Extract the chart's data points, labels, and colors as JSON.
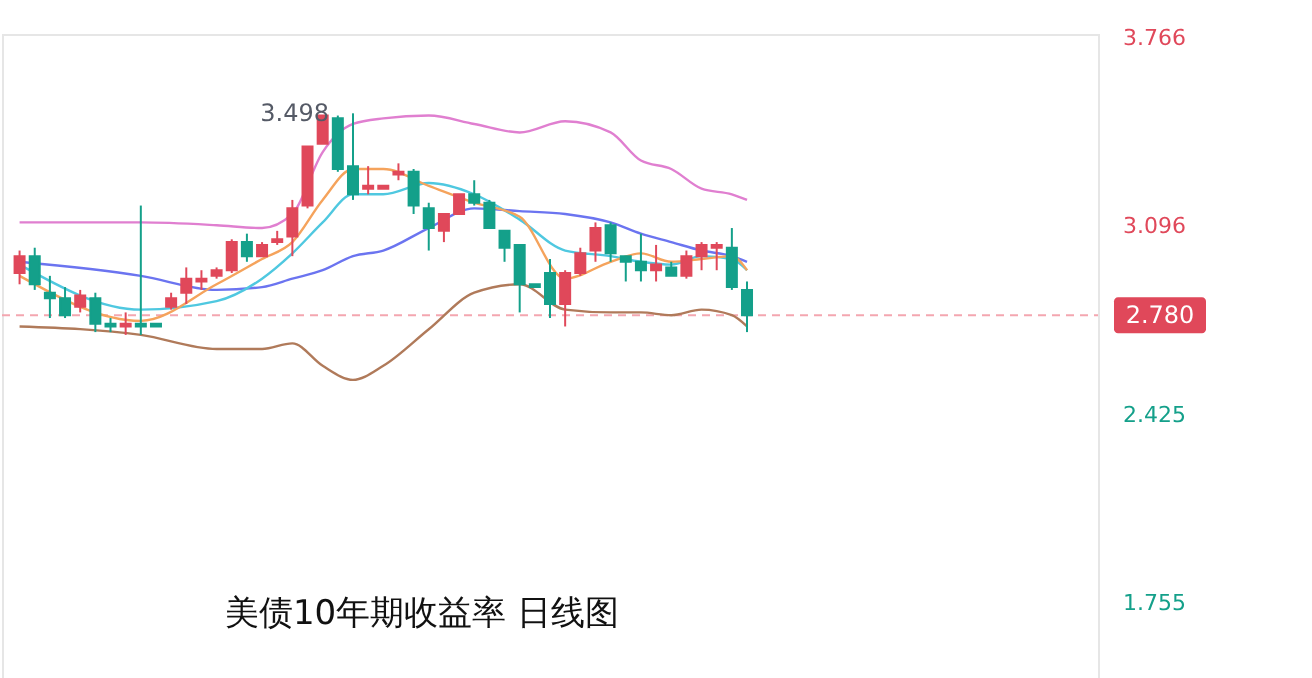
{
  "chart_data": {
    "type": "candlestick",
    "title": "美债10年期收益率 日线图",
    "categories": [
      null,
      null,
      null,
      null,
      null,
      null,
      null,
      null,
      null,
      null,
      null,
      null,
      null,
      null,
      null,
      null,
      null,
      null,
      null,
      null,
      null,
      null,
      null,
      null,
      null,
      null,
      null,
      null,
      null,
      null,
      null,
      null,
      null,
      null,
      null,
      null,
      null,
      null,
      null,
      null,
      null,
      null,
      null,
      null,
      null,
      null,
      null,
      null,
      null,
      null,
      null,
      null,
      null,
      null,
      null,
      null,
      null,
      null,
      null,
      null,
      null,
      null,
      null,
      null,
      null,
      null,
      null,
      null,
      null,
      null,
      null
    ],
    "ohlc": [
      [
        2.93,
        3.01,
        2.89,
        2.99
      ],
      [
        2.99,
        3.02,
        2.87,
        2.89
      ],
      [
        2.86,
        2.92,
        2.77,
        2.84
      ],
      [
        2.84,
        2.88,
        2.77,
        2.78
      ],
      [
        2.81,
        2.87,
        2.79,
        2.85
      ],
      [
        2.84,
        2.86,
        2.72,
        2.75
      ],
      [
        2.75,
        2.77,
        2.72,
        2.74
      ],
      [
        2.74,
        2.79,
        2.71,
        2.75
      ],
      [
        2.75,
        3.17,
        2.71,
        2.74
      ],
      [
        2.75,
        2.75,
        2.74,
        2.74
      ],
      [
        2.81,
        2.86,
        2.8,
        2.84
      ],
      [
        2.86,
        2.95,
        2.82,
        2.91
      ],
      [
        2.9,
        2.94,
        2.87,
        2.91
      ],
      [
        2.92,
        2.95,
        2.91,
        2.94
      ],
      [
        2.94,
        3.05,
        2.93,
        3.04
      ],
      [
        3.04,
        3.07,
        2.97,
        2.99
      ],
      [
        2.99,
        3.04,
        2.99,
        3.03
      ],
      [
        3.04,
        3.08,
        3.03,
        3.05
      ],
      [
        3.06,
        3.19,
        2.99,
        3.16
      ],
      [
        3.17,
        3.38,
        3.16,
        3.38
      ],
      [
        3.39,
        3.49,
        3.39,
        3.49
      ],
      [
        3.48,
        3.49,
        3.29,
        3.3
      ],
      [
        3.31,
        3.498,
        3.19,
        3.21
      ],
      [
        3.23,
        3.31,
        3.21,
        3.24
      ],
      [
        3.23,
        3.24,
        3.23,
        3.24
      ],
      [
        3.28,
        3.32,
        3.26,
        3.29
      ],
      [
        3.29,
        3.3,
        3.14,
        3.17
      ],
      [
        3.16,
        3.18,
        3.01,
        3.09
      ],
      [
        3.08,
        3.14,
        3.04,
        3.14
      ],
      [
        3.14,
        3.21,
        3.14,
        3.21
      ],
      [
        3.21,
        3.26,
        3.17,
        3.18
      ],
      [
        3.18,
        3.19,
        3.09,
        3.09
      ],
      [
        3.08,
        3.08,
        2.97,
        3.02
      ],
      [
        3.03,
        3.03,
        2.79,
        2.89
      ],
      [
        2.89,
        2.89,
        2.88,
        2.88
      ],
      [
        2.93,
        2.98,
        2.77,
        2.82
      ],
      [
        2.82,
        2.94,
        2.74,
        2.93
      ],
      [
        2.93,
        3.02,
        2.92,
        3.0
      ],
      [
        3.01,
        3.11,
        2.97,
        3.09
      ],
      [
        3.1,
        3.11,
        2.97,
        3.0
      ],
      [
        2.99,
        2.99,
        2.9,
        2.97
      ],
      [
        2.97,
        3.07,
        2.9,
        2.94
      ],
      [
        2.94,
        3.03,
        2.9,
        2.96
      ],
      [
        2.95,
        2.97,
        2.92,
        2.92
      ],
      [
        2.92,
        3.01,
        2.91,
        2.99
      ],
      [
        2.99,
        3.04,
        2.94,
        3.03
      ],
      [
        3.02,
        3.04,
        2.94,
        3.03
      ],
      [
        3.02,
        3.09,
        2.87,
        2.88
      ],
      [
        2.87,
        2.9,
        2.72,
        2.78
      ],
      null,
      null,
      null,
      null,
      null,
      null,
      null,
      null,
      null,
      null,
      null,
      null,
      null,
      null,
      null,
      null,
      null,
      null,
      null,
      null,
      null,
      null
    ],
    "colors": [
      "#e0485a",
      "#14a08a",
      "#14a08a",
      "#14a08a",
      "#e0485a",
      "#14a08a",
      "#14a08a",
      "#e0485a",
      "#14a08a",
      "#14a08a",
      "#e0485a",
      "#e0485a",
      "#e0485a",
      "#e0485a",
      "#e0485a",
      "#14a08a",
      "#e0485a",
      "#e0485a",
      "#e0485a",
      "#e0485a",
      "#e0485a",
      "#14a08a",
      "#14a08a",
      "#e0485a",
      "#e0485a",
      "#e0485a",
      "#14a08a",
      "#14a08a",
      "#e0485a",
      "#e0485a",
      "#14a08a",
      "#14a08a",
      "#14a08a",
      "#14a08a",
      "#14a08a",
      "#14a08a",
      "#e0485a",
      "#e0485a",
      "#e0485a",
      "#14a08a",
      "#14a08a",
      "#14a08a",
      "#e0485a",
      "#14a08a",
      "#e0485a",
      "#e0485a",
      "#e0485a",
      "#14a08a",
      "#14a08a",
      null,
      null,
      null,
      null,
      null,
      null,
      null,
      null,
      null,
      null,
      null,
      null,
      null,
      null,
      null,
      null,
      null,
      null,
      null,
      null,
      null,
      null
    ],
    "series": [
      {
        "type": "line",
        "color": "#e07fd0",
        "values": [
          3.11,
          null,
          null,
          null,
          null,
          null,
          null,
          null,
          3.11,
          null,
          null,
          null,
          null,
          3.1,
          null,
          null,
          3.09,
          null,
          3.14,
          null,
          3.36,
          null,
          3.46,
          null,
          3.48,
          null,
          null,
          3.49,
          null,
          null,
          3.46,
          null,
          null,
          3.43,
          null,
          null,
          3.47,
          null,
          null,
          3.43,
          null,
          3.33,
          null,
          3.3,
          null,
          3.23,
          null,
          3.21,
          3.19,
          null,
          null,
          null,
          null,
          null,
          null,
          null,
          null,
          null,
          null,
          null,
          null,
          null,
          null,
          null,
          null,
          null,
          null,
          null,
          null,
          null,
          null
        ]
      },
      {
        "type": "line",
        "color": "#b07a5a",
        "values": [
          2.74,
          null,
          null,
          null,
          null,
          null,
          null,
          null,
          2.71,
          null,
          null,
          null,
          null,
          2.66,
          null,
          null,
          2.66,
          null,
          2.68,
          null,
          2.6,
          null,
          2.55,
          null,
          2.6,
          null,
          null,
          2.73,
          null,
          null,
          2.86,
          null,
          null,
          2.89,
          null,
          null,
          2.8,
          null,
          null,
          2.79,
          null,
          2.79,
          null,
          2.78,
          null,
          2.8,
          null,
          2.78,
          2.74,
          null,
          null,
          null,
          null,
          null,
          null,
          null,
          null,
          null,
          null,
          null,
          null,
          null,
          null,
          null,
          null,
          null,
          null,
          null,
          null,
          null,
          null
        ]
      },
      {
        "type": "line",
        "color": "#6b74f0",
        "values": [
          2.97,
          null,
          null,
          null,
          null,
          null,
          null,
          null,
          2.92,
          null,
          null,
          null,
          null,
          2.87,
          null,
          null,
          2.88,
          null,
          2.91,
          null,
          2.94,
          null,
          2.99,
          null,
          3.01,
          null,
          null,
          3.09,
          null,
          null,
          3.16,
          null,
          null,
          3.15,
          null,
          null,
          3.14,
          null,
          null,
          3.11,
          null,
          3.07,
          null,
          3.04,
          null,
          3.01,
          null,
          2.99,
          2.97,
          null,
          null,
          null,
          null,
          null,
          null,
          null,
          null,
          null,
          null,
          null,
          null,
          null,
          null,
          null,
          null,
          null,
          null,
          null,
          null,
          null,
          null
        ]
      },
      {
        "type": "line",
        "color": "#4fc8e0",
        "values": [
          2.96,
          null,
          null,
          null,
          null,
          null,
          null,
          null,
          2.8,
          null,
          null,
          null,
          null,
          2.83,
          null,
          null,
          2.91,
          null,
          3.0,
          null,
          3.11,
          null,
          3.21,
          null,
          3.21,
          null,
          null,
          3.25,
          null,
          null,
          3.21,
          null,
          null,
          3.12,
          null,
          null,
          3.01,
          null,
          null,
          2.99,
          null,
          2.97,
          null,
          2.96,
          null,
          2.99,
          null,
          2.98,
          2.94,
          null,
          null,
          null,
          null,
          null,
          null,
          null,
          null,
          null,
          null,
          null,
          null,
          null,
          null,
          null,
          null,
          null,
          null,
          null,
          null,
          null,
          null
        ]
      },
      {
        "type": "line",
        "color": "#f5a35c",
        "values": [
          2.92,
          null,
          null,
          null,
          null,
          null,
          null,
          null,
          2.76,
          null,
          null,
          null,
          null,
          2.89,
          null,
          null,
          2.98,
          null,
          3.04,
          null,
          3.19,
          null,
          3.3,
          null,
          3.3,
          null,
          null,
          3.24,
          null,
          null,
          3.18,
          null,
          null,
          3.13,
          null,
          null,
          2.91,
          null,
          null,
          2.97,
          null,
          3.0,
          null,
          2.97,
          null,
          2.98,
          null,
          2.99,
          2.94,
          null,
          null,
          null,
          null,
          null,
          null,
          null,
          null,
          null,
          null,
          null,
          null,
          null,
          null,
          null,
          null,
          null,
          null,
          null,
          null,
          null,
          null
        ]
      }
    ],
    "ylim": [
      1.49,
      3.78
    ],
    "yticks": [
      3.766,
      3.096,
      {
        "value": 2.425,
        "label": "2.425"
      },
      1.755
    ],
    "ref_lines": [
      {
        "axis": "y",
        "value": 2.78,
        "label": "2.780",
        "color": "#f4a6b0",
        "line_style": "dashed"
      }
    ],
    "annotations": [
      "3.498"
    ],
    "tick_labels": "y",
    "grid": false,
    "line_style": "solid",
    "marker": "none"
  }
}
